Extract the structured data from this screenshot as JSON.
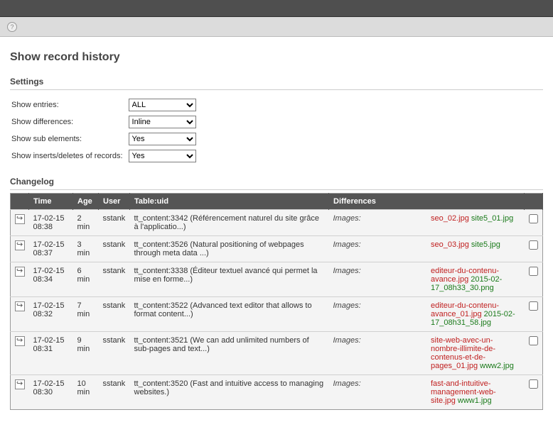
{
  "header": {
    "title": "Show record history"
  },
  "sections": {
    "settings": "Settings",
    "changelog": "Changelog"
  },
  "settings": {
    "rows": [
      {
        "label": "Show entries:",
        "value": "ALL"
      },
      {
        "label": "Show differences:",
        "value": "Inline"
      },
      {
        "label": "Show sub elements:",
        "value": "Yes"
      },
      {
        "label": "Show inserts/deletes of records:",
        "value": "Yes"
      }
    ]
  },
  "columns": {
    "time": "Time",
    "age": "Age",
    "user": "User",
    "table": "Table:uid",
    "diff": "Differences"
  },
  "diff_label": "Images:",
  "rows": [
    {
      "time": "17-02-15 08:38",
      "age": "2 min",
      "user": "sstank",
      "table": "tt_content:3342 (Référencement naturel du site grâce à l'applicatio...)",
      "removed": "seo_02.jpg",
      "added": "site5_01.jpg"
    },
    {
      "time": "17-02-15 08:37",
      "age": "3 min",
      "user": "sstank",
      "table": "tt_content:3526 (Natural positioning of webpages through meta data ...)",
      "removed": "seo_03.jpg",
      "added": "site5.jpg"
    },
    {
      "time": "17-02-15 08:34",
      "age": "6 min",
      "user": "sstank",
      "table": "tt_content:3338 (Éditeur textuel avancé qui permet la mise en forme...)",
      "removed": "editeur-du-contenu-avance.jpg",
      "added": "2015-02-17_08h33_30.png"
    },
    {
      "time": "17-02-15 08:32",
      "age": "7 min",
      "user": "sstank",
      "table": "tt_content:3522 (Advanced text editor that allows to format content...)",
      "removed": "editeur-du-contenu-avance_01.jpg",
      "added": "2015-02-17_08h31_58.jpg"
    },
    {
      "time": "17-02-15 08:31",
      "age": "9 min",
      "user": "sstank",
      "table": "tt_content:3521 (We can add unlimited numbers of sub-pages and text...)",
      "removed": "site-web-avec-un-nombre-illimite-de-contenus-et-de-pages_01.jpg",
      "added": "www2.jpg"
    },
    {
      "time": "17-02-15 08:30",
      "age": "10 min",
      "user": "sstank",
      "table": "tt_content:3520 (Fast and intuitive access to managing websites.)",
      "removed": "fast-and-intuitive-management-web-site.jpg",
      "added": "www1.jpg"
    }
  ]
}
